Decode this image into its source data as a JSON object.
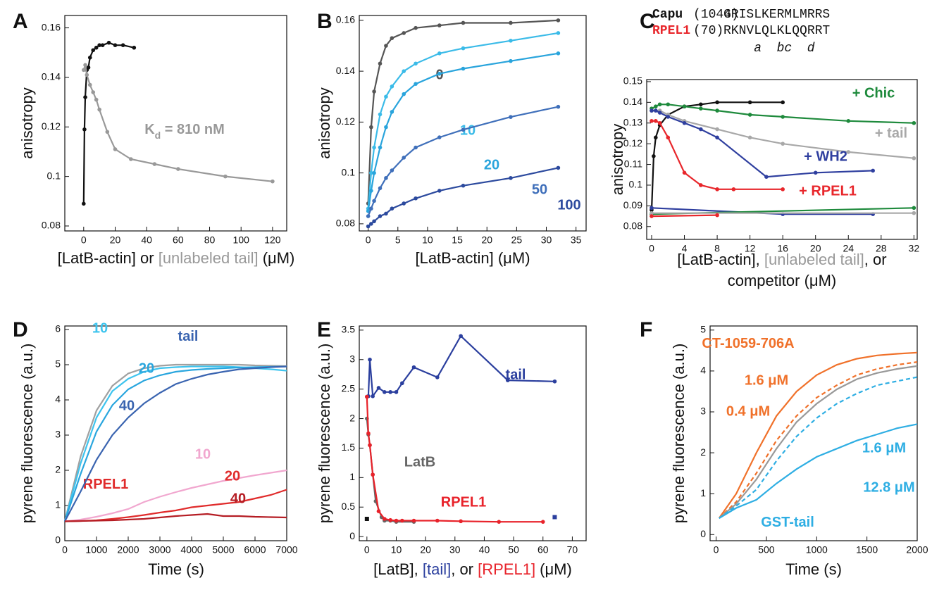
{
  "chart_data": [
    {
      "type": "line",
      "label": "A",
      "markers": true,
      "ylabel": "anisotropy",
      "xlabel": [
        [
          {
            "text": "[LatB-actin] or ",
            "color": "#111"
          },
          {
            "text": "[unlabeled tail]",
            "color": "#999999"
          },
          {
            "text": " (μM)",
            "color": "#111"
          }
        ]
      ],
      "xlim": [
        -12,
        129
      ],
      "ylim": [
        0.078,
        0.165
      ],
      "xticks": [
        0,
        20,
        40,
        60,
        80,
        100,
        120
      ],
      "yticks": [
        0.08,
        0.1,
        0.12,
        0.14,
        0.16
      ],
      "annotations": [
        {
          "text": "K",
          "sub": "d",
          "rest": " = 810 nM",
          "color": "#999999"
        }
      ],
      "series": [
        {
          "color": "#111111",
          "x": [
            0,
            0.5,
            1,
            2,
            3,
            4,
            6,
            8,
            10,
            12,
            16,
            20,
            25,
            32
          ],
          "values": [
            0.089,
            0.119,
            0.132,
            0.143,
            0.144,
            0.148,
            0.151,
            0.152,
            0.153,
            0.153,
            0.154,
            0.153,
            0.153,
            0.152
          ]
        },
        {
          "color": "#999999",
          "x": [
            0,
            1,
            2,
            4,
            6,
            8,
            10,
            15,
            20,
            30,
            45,
            60,
            90,
            120
          ],
          "values": [
            0.143,
            0.145,
            0.141,
            0.137,
            0.134,
            0.131,
            0.127,
            0.118,
            0.111,
            0.107,
            0.105,
            0.103,
            0.1,
            0.098
          ]
        }
      ]
    },
    {
      "type": "line",
      "label": "B",
      "markers": true,
      "ylabel": "anisotropy",
      "xlabel": [
        [
          {
            "text": "[LatB-actin] (μM)",
            "color": "#111"
          }
        ]
      ],
      "xlim": [
        -1.5,
        36.7
      ],
      "ylim": [
        0.0772,
        0.1619
      ],
      "xticks": [
        0,
        5,
        10,
        15,
        20,
        25,
        30,
        35
      ],
      "yticks": [
        0.08,
        0.1,
        0.12,
        0.14,
        0.16
      ],
      "x": [
        0,
        0.5,
        1,
        2,
        3,
        4,
        6,
        8,
        12,
        16,
        24,
        32
      ],
      "series": [
        {
          "name": "0",
          "color": "#555555",
          "values": [
            0.088,
            0.118,
            0.132,
            0.143,
            0.15,
            0.153,
            0.155,
            0.157,
            0.158,
            0.159,
            0.159,
            0.16
          ]
        },
        {
          "name": "10",
          "color": "#3bbbe8",
          "values": [
            0.086,
            0.1,
            0.11,
            0.123,
            0.13,
            0.134,
            0.14,
            0.143,
            0.147,
            0.149,
            0.152,
            0.155
          ]
        },
        {
          "name": "20",
          "color": "#29a4dc",
          "values": [
            0.085,
            0.093,
            0.1,
            0.11,
            0.118,
            0.124,
            0.131,
            0.135,
            0.139,
            0.141,
            0.144,
            0.147
          ]
        },
        {
          "name": "50",
          "color": "#3f6fba",
          "values": [
            0.083,
            0.086,
            0.089,
            0.094,
            0.098,
            0.101,
            0.106,
            0.11,
            0.114,
            0.117,
            0.122,
            0.126
          ]
        },
        {
          "name": "100",
          "color": "#2c4a9e",
          "values": [
            0.079,
            0.08,
            0.081,
            0.083,
            0.084,
            0.086,
            0.088,
            0.09,
            0.093,
            0.095,
            0.098,
            0.102
          ]
        }
      ]
    },
    {
      "type": "line",
      "label": "C",
      "markers": true,
      "ylabel": "anisotropy",
      "header": [
        {
          "name": "Capu",
          "num": "(1044)",
          "seq": "GRISLKERMLMRRS",
          "color": "#111111"
        },
        {
          "name": "RPEL1",
          "num": "(70)",
          "seq": "RKNVLQLKLQQRRT",
          "color": "#e8262b"
        }
      ],
      "header_marks": [
        "a",
        "bc",
        "d"
      ],
      "xlabel": [
        [
          {
            "text": "[LatB-actin], ",
            "color": "#111"
          },
          {
            "text": "[unlabeled tail]",
            "color": "#999999"
          },
          {
            "text": ", or",
            "color": "#111"
          }
        ],
        [
          {
            "text": "competitor (μM)",
            "color": "#111"
          }
        ]
      ],
      "xlim": [
        -0.6,
        32.4
      ],
      "ylim": [
        0.0738,
        0.151
      ],
      "xticks": [
        0,
        4,
        8,
        12,
        16,
        20,
        24,
        28,
        32
      ],
      "yticks": [
        0.08,
        0.09,
        0.1,
        0.11,
        0.12,
        0.13,
        0.14,
        0.15
      ],
      "series": [
        {
          "color": "#111111",
          "x": [
            0,
            0.25,
            0.5,
            1,
            2,
            4,
            6,
            8,
            12,
            16
          ],
          "values": [
            0.088,
            0.114,
            0.123,
            0.129,
            0.134,
            0.138,
            0.139,
            0.14,
            0.14,
            0.14
          ]
        },
        {
          "name": "+ Chic",
          "color": "#1e8a3c",
          "x": [
            0,
            0.5,
            1,
            2,
            4,
            6,
            8,
            12,
            16,
            24,
            32
          ],
          "values": [
            0.137,
            0.138,
            0.139,
            0.139,
            0.138,
            0.137,
            0.136,
            0.134,
            0.133,
            0.131,
            0.13
          ]
        },
        {
          "name": "+ tail",
          "color": "#a8a8a8",
          "x": [
            0,
            1,
            2,
            4,
            8,
            12,
            16,
            24,
            32
          ],
          "values": [
            0.136,
            0.136,
            0.134,
            0.131,
            0.127,
            0.123,
            0.12,
            0.116,
            0.113
          ]
        },
        {
          "name": "+ WH2",
          "color": "#2f3f9f",
          "x": [
            0,
            0.5,
            1,
            2,
            4,
            6,
            8,
            14,
            20,
            27
          ],
          "values": [
            0.136,
            0.136,
            0.135,
            0.133,
            0.13,
            0.127,
            0.123,
            0.104,
            0.106,
            0.107
          ]
        },
        {
          "name": "+ RPEL1",
          "color": "#e8262b",
          "x": [
            0,
            0.5,
            1,
            2,
            4,
            6,
            8,
            10,
            16
          ],
          "values": [
            0.131,
            0.131,
            0.13,
            0.123,
            0.106,
            0.1,
            0.098,
            0.098,
            0.098
          ]
        },
        {
          "color": "#2f3f9f",
          "x": [
            0,
            16,
            27
          ],
          "values": [
            0.089,
            0.086,
            0.086
          ]
        },
        {
          "color": "#1e8a3c",
          "x": [
            0,
            32
          ],
          "values": [
            0.086,
            0.089
          ]
        },
        {
          "color": "#a8a8a8",
          "x": [
            0,
            32
          ],
          "values": [
            0.0865,
            0.0865
          ]
        },
        {
          "color": "#e8262b",
          "x": [
            0,
            8
          ],
          "values": [
            0.085,
            0.0855
          ]
        }
      ]
    },
    {
      "type": "line",
      "label": "D",
      "markers": false,
      "ylabel": "pyrene fluorescence (a.u.)",
      "xlabel": [
        [
          {
            "text": "Time (s)",
            "color": "#111"
          }
        ]
      ],
      "xlim": [
        0,
        7000
      ],
      "ylim": [
        0,
        6.1
      ],
      "xticks": [
        0,
        1000,
        2000,
        3000,
        4000,
        5000,
        6000,
        7000
      ],
      "yticks": [
        0,
        1,
        2,
        3,
        4,
        5,
        6
      ],
      "annotations": [
        {
          "text": "tail",
          "color": "#3a64b0"
        },
        {
          "text": "RPEL1",
          "color": "#e02b2b"
        }
      ],
      "x": [
        0,
        500,
        1000,
        1500,
        2000,
        2500,
        3000,
        3500,
        4000,
        4500,
        5000,
        5500,
        6000,
        6500,
        7000
      ],
      "series": [
        {
          "color": "#a0a0a0",
          "values": [
            0.55,
            2.4,
            3.7,
            4.4,
            4.75,
            4.9,
            4.97,
            5,
            5,
            5,
            5,
            5,
            4.98,
            4.97,
            4.96
          ]
        },
        {
          "name": "10",
          "color": "#3ec4ee",
          "values": [
            0.55,
            2.2,
            3.5,
            4.25,
            4.6,
            4.8,
            4.9,
            4.93,
            4.95,
            4.95,
            4.95,
            4.93,
            4.9,
            4.87,
            4.83
          ]
        },
        {
          "name": "20",
          "color": "#2aa6de",
          "values": [
            0.55,
            1.9,
            3.1,
            3.85,
            4.3,
            4.55,
            4.7,
            4.8,
            4.85,
            4.88,
            4.9,
            4.92,
            4.93,
            4.94,
            4.95
          ]
        },
        {
          "name": "40",
          "color": "#3a64b0",
          "values": [
            0.55,
            1.4,
            2.3,
            3.0,
            3.5,
            3.9,
            4.2,
            4.45,
            4.6,
            4.72,
            4.8,
            4.87,
            4.9,
            4.93,
            4.95
          ]
        },
        {
          "name": "10",
          "color": "#f1a7cf",
          "values": [
            0.55,
            0.6,
            0.68,
            0.78,
            0.9,
            1.1,
            1.25,
            1.38,
            1.5,
            1.6,
            1.7,
            1.78,
            1.86,
            1.93,
            2.0
          ]
        },
        {
          "name": "20",
          "color": "#e02b2b",
          "values": [
            0.55,
            0.56,
            0.58,
            0.62,
            0.67,
            0.73,
            0.8,
            0.86,
            0.95,
            1.0,
            1.05,
            1.1,
            1.2,
            1.3,
            1.45
          ]
        },
        {
          "name": "40",
          "color": "#b51d24",
          "values": [
            0.55,
            0.56,
            0.57,
            0.58,
            0.6,
            0.62,
            0.66,
            0.7,
            0.73,
            0.76,
            0.7,
            0.7,
            0.68,
            0.67,
            0.66
          ]
        }
      ]
    },
    {
      "type": "line",
      "label": "E",
      "markers": true,
      "ylabel": "pyrene fluorescence (a.u.)",
      "xlabel": [
        [
          {
            "text": "[LatB], ",
            "color": "#111"
          },
          {
            "text": "[tail]",
            "color": "#2b3f9e"
          },
          {
            "text": ", or ",
            "color": "#111"
          },
          {
            "text": "[RPEL1]",
            "color": "#e8222a"
          },
          {
            "text": " (μM)",
            "color": "#111"
          }
        ]
      ],
      "xlim": [
        -2.6,
        74.7
      ],
      "ylim": [
        -0.07,
        3.57
      ],
      "xticks": [
        0,
        10,
        20,
        30,
        40,
        50,
        60,
        70
      ],
      "yticks": [
        0,
        0.5,
        1,
        1.5,
        2,
        2.5,
        3,
        3.5
      ],
      "series": [
        {
          "name": "tail",
          "color": "#2b3f9e",
          "x": [
            0,
            0.5,
            1,
            2,
            4,
            6,
            8,
            10,
            12,
            16,
            24,
            32,
            48,
            64
          ],
          "values": [
            2.37,
            2.38,
            3.0,
            2.38,
            2.52,
            2.45,
            2.45,
            2.45,
            2.6,
            2.87,
            2.7,
            3.4,
            2.65,
            2.63
          ]
        },
        {
          "name": "LatB",
          "color": "#666666",
          "x": [
            0,
            0.5,
            1,
            2,
            3,
            5,
            6,
            8,
            10,
            16
          ],
          "values": [
            2.0,
            1.73,
            1.55,
            1.05,
            0.6,
            0.33,
            0.27,
            0.27,
            0.25,
            0.25
          ]
        },
        {
          "name": "RPEL1",
          "color": "#e8222a",
          "x": [
            0,
            0.5,
            1,
            2,
            4,
            6,
            8,
            10,
            12,
            16,
            24,
            32,
            45,
            60
          ],
          "values": [
            2.37,
            1.75,
            1.55,
            1.05,
            0.43,
            0.3,
            0.28,
            0.27,
            0.27,
            0.27,
            0.27,
            0.26,
            0.25,
            0.25
          ]
        },
        {
          "color": "#111111",
          "marker": "square",
          "x": [
            0
          ],
          "values": [
            0.3
          ]
        },
        {
          "color": "#2b3f9e",
          "marker": "square",
          "x": [
            64
          ],
          "values": [
            0.33
          ]
        }
      ]
    },
    {
      "type": "line",
      "label": "F",
      "markers": false,
      "ylabel": "pyrene fluorescence (a.u.)",
      "xlabel": [
        [
          {
            "text": "Time (s)",
            "color": "#111"
          }
        ]
      ],
      "xlim": [
        -60,
        2000
      ],
      "ylim": [
        -0.15,
        5.1
      ],
      "xticks": [
        0,
        500,
        1000,
        1500,
        2000
      ],
      "yticks": [
        0,
        1,
        2,
        3,
        4,
        5
      ],
      "annotations": [
        {
          "text": "CT-1059-706A",
          "color": "#f0712a"
        },
        {
          "text": "GST-tail",
          "color": "#2eaee3"
        }
      ],
      "x": [
        30,
        200,
        400,
        600,
        800,
        1000,
        1200,
        1400,
        1600,
        1800,
        2000
      ],
      "series": [
        {
          "name": "1.6 μM",
          "color": "#f0712a",
          "values": [
            0.4,
            1.0,
            2.0,
            2.9,
            3.5,
            3.9,
            4.15,
            4.3,
            4.38,
            4.42,
            4.45
          ]
        },
        {
          "name": "0.4 μM",
          "color": "#f0712a",
          "line_style": "dashed",
          "values": [
            0.4,
            0.8,
            1.5,
            2.3,
            2.9,
            3.35,
            3.65,
            3.9,
            4.05,
            4.15,
            4.22
          ]
        },
        {
          "color": "#999999",
          "values": [
            0.4,
            0.75,
            1.35,
            2.1,
            2.75,
            3.2,
            3.55,
            3.8,
            3.95,
            4.05,
            4.12
          ]
        },
        {
          "name": "1.6 μM",
          "color": "#2eaee3",
          "line_style": "dashed",
          "values": [
            0.4,
            0.7,
            1.1,
            1.8,
            2.4,
            2.85,
            3.2,
            3.45,
            3.65,
            3.75,
            3.85
          ]
        },
        {
          "name": "12.8 μM",
          "color": "#2eaee3",
          "values": [
            0.4,
            0.65,
            0.85,
            1.25,
            1.6,
            1.9,
            2.1,
            2.3,
            2.45,
            2.6,
            2.7
          ]
        }
      ]
    }
  ]
}
